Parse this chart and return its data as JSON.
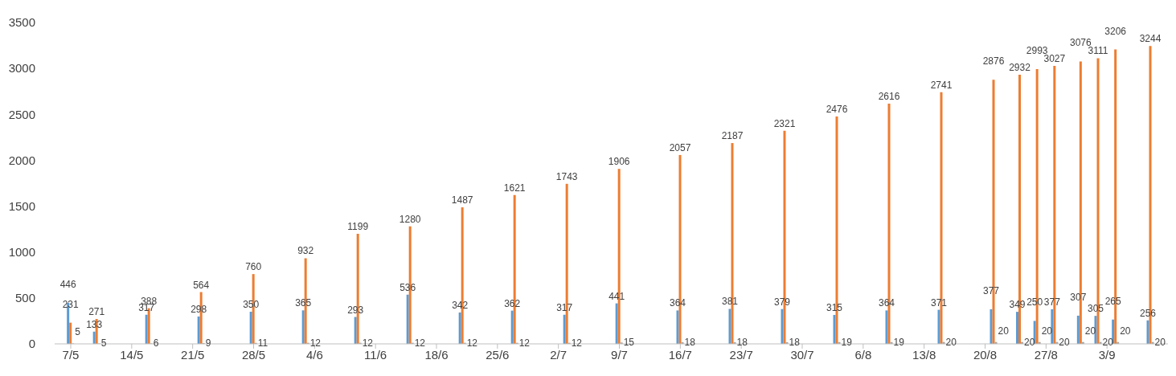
{
  "chart_data": {
    "type": "bar",
    "x": [
      "--05-07",
      "--05-10",
      "--05-16",
      "--05-22",
      "--05-28",
      "--06-03",
      "--06-09",
      "--06-15",
      "--06-21",
      "--06-27",
      "--07-03",
      "--07-09",
      "--07-16",
      "--07-22",
      "--07-28",
      "--08-03",
      "--08-09",
      "--08-15",
      "--08-21",
      "--08-24",
      "--08-26",
      "--08-28",
      "--08-31",
      "--09-02",
      "--09-04",
      "--09-08"
    ],
    "series": [
      {
        "color": "#5b9bd5",
        "values": [
          446,
          133,
          317,
          298,
          350,
          365,
          293,
          536,
          342,
          362,
          317,
          441,
          364,
          381,
          379,
          315,
          364,
          371,
          377,
          349,
          250,
          377,
          307,
          305,
          265,
          256
        ]
      },
      {
        "color": "#ed7d31",
        "values": [
          231,
          271,
          388,
          564,
          760,
          932,
          1199,
          1280,
          1487,
          1621,
          1743,
          1906,
          2057,
          2187,
          2321,
          2476,
          2616,
          2741,
          2876,
          2932,
          2993,
          3027,
          3076,
          3111,
          3206,
          3244
        ]
      },
      {
        "color": "#a5a5a5",
        "values": [
          5,
          5,
          6,
          9,
          11,
          12,
          12,
          12,
          12,
          12,
          12,
          15,
          18,
          18,
          18,
          19,
          19,
          20,
          20,
          20,
          20,
          20,
          20,
          20,
          20,
          20
        ]
      }
    ],
    "xlim": [
      "--05-07",
      "--09-10"
    ],
    "xticks": [
      {
        "value": "--05-07",
        "label": "7/5"
      },
      {
        "value": "--05-14",
        "label": "14/5"
      },
      {
        "value": "--05-21",
        "label": "21/5"
      },
      {
        "value": "--05-28",
        "label": "28/5"
      },
      {
        "value": "--06-04",
        "label": "4/6"
      },
      {
        "value": "--06-11",
        "label": "11/6"
      },
      {
        "value": "--06-18",
        "label": "18/6"
      },
      {
        "value": "--06-25",
        "label": "25/6"
      },
      {
        "value": "--07-02",
        "label": "2/7"
      },
      {
        "value": "--07-09",
        "label": "9/7"
      },
      {
        "value": "--07-16",
        "label": "16/7"
      },
      {
        "value": "--07-23",
        "label": "23/7"
      },
      {
        "value": "--07-30",
        "label": "30/7"
      },
      {
        "value": "--08-06",
        "label": "6/8"
      },
      {
        "value": "--08-13",
        "label": "13/8"
      },
      {
        "value": "--08-20",
        "label": "20/8"
      },
      {
        "value": "--08-27",
        "label": "27/8"
      },
      {
        "value": "--09-03",
        "label": "3/9"
      }
    ],
    "ylim": [
      0,
      3500
    ],
    "yticks": [
      0,
      500,
      1000,
      1500,
      2000,
      2500,
      3000,
      3500
    ],
    "data_labels": true,
    "grid": false,
    "legend": false
  }
}
